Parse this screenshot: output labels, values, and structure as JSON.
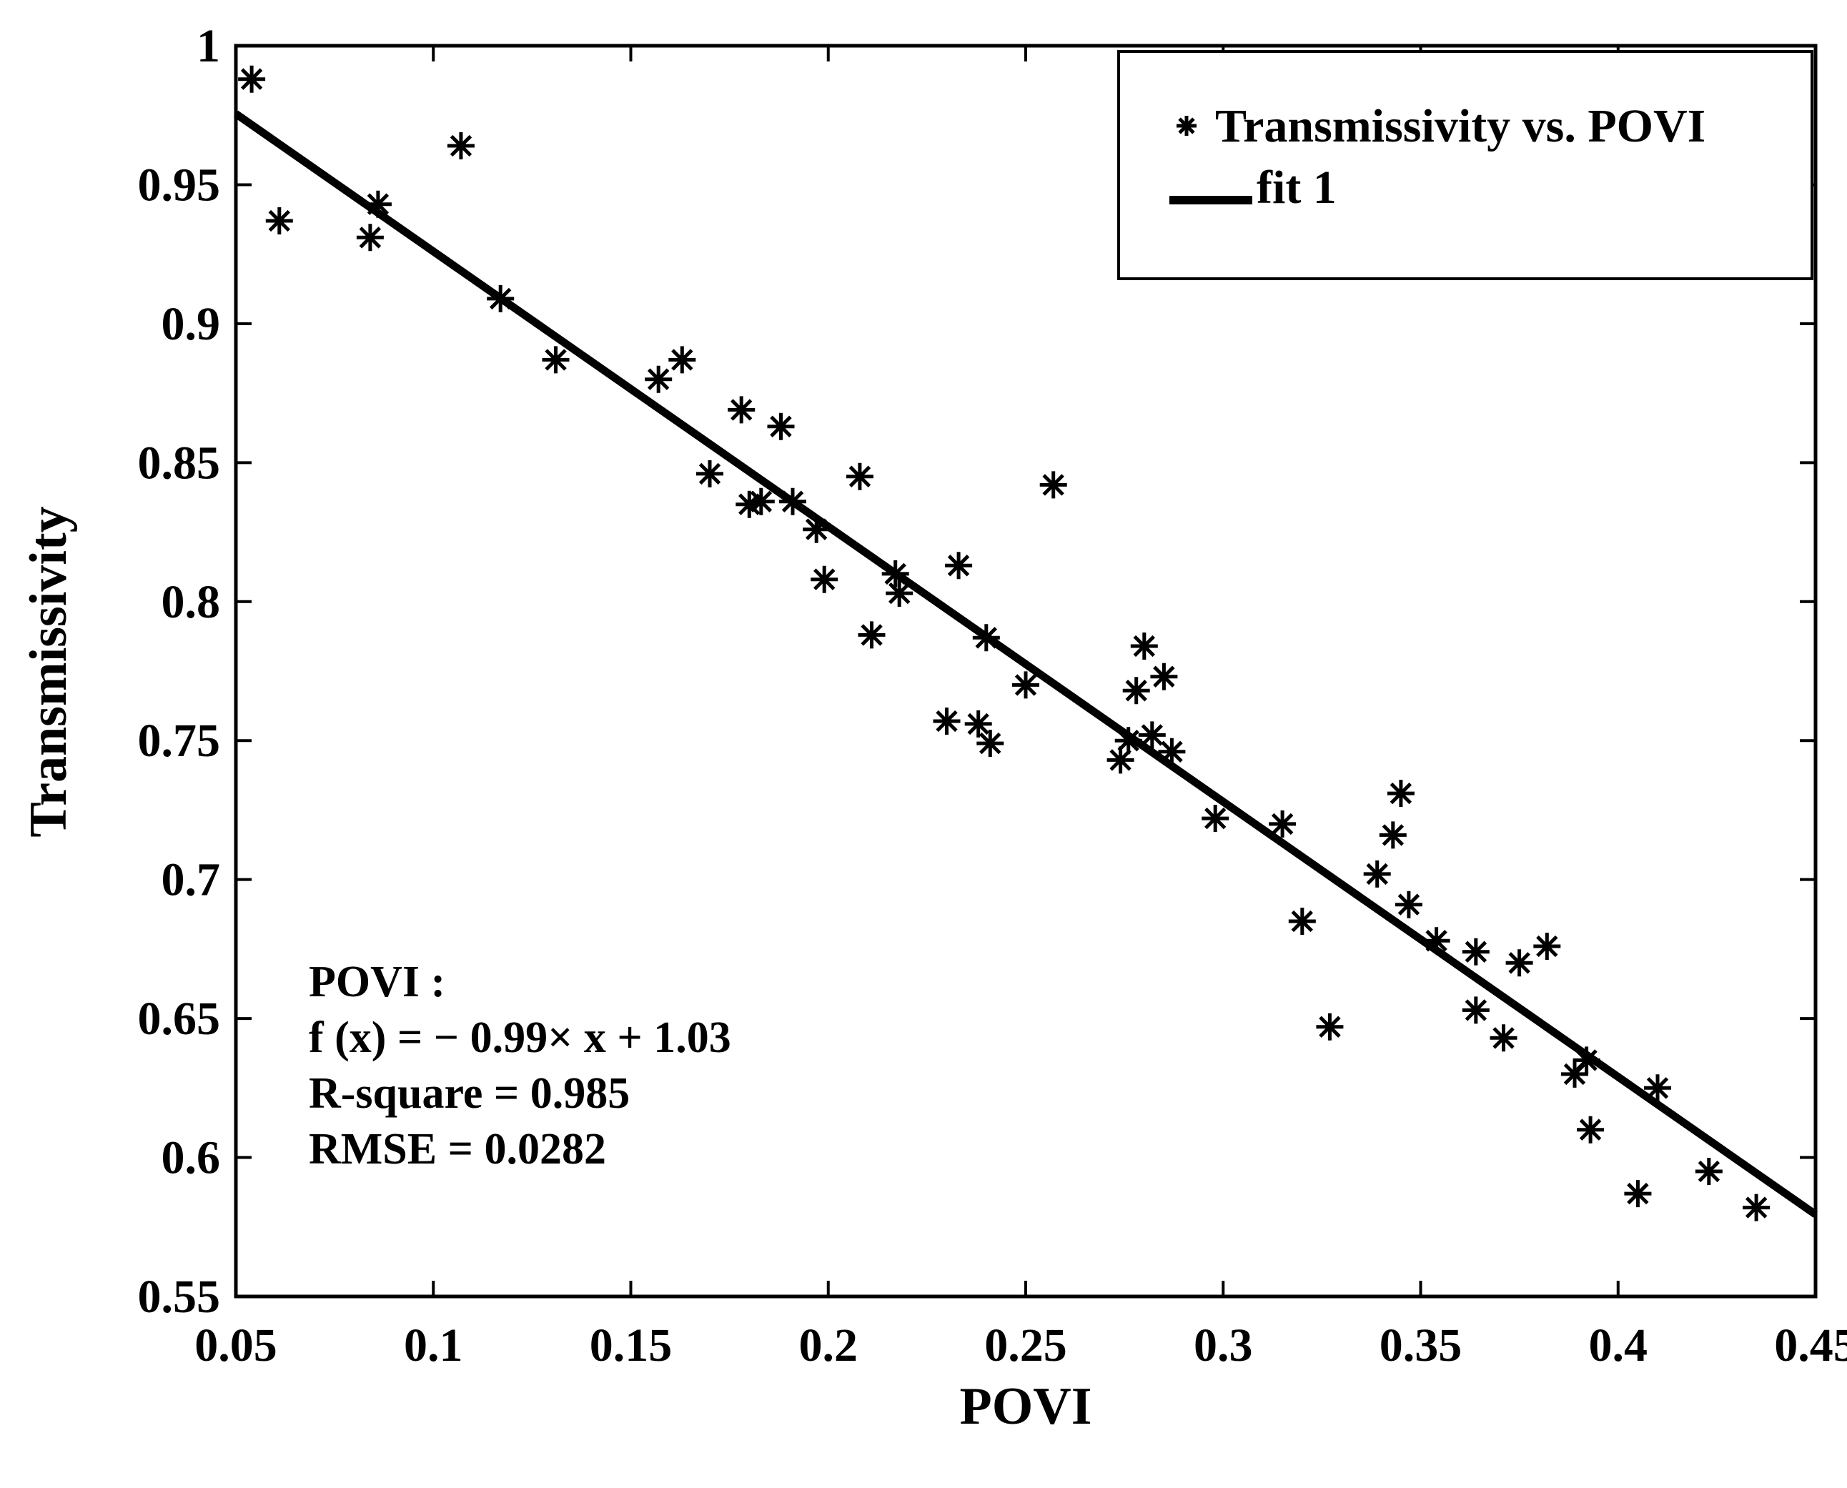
{
  "chart_data": {
    "type": "scatter",
    "xlabel": "POVI",
    "ylabel": "Transmissivity",
    "xlim": [
      0.05,
      0.45
    ],
    "ylim": [
      0.55,
      1.0
    ],
    "x_ticks": [
      "0.05",
      "0.1",
      "0.15",
      "0.2",
      "0.25",
      "0.3",
      "0.35",
      "0.4",
      "0.45"
    ],
    "y_ticks": [
      "0.55",
      "0.6",
      "0.65",
      "0.7",
      "0.75",
      "0.8",
      "0.85",
      "0.9",
      "0.95",
      "1"
    ],
    "x_tick_values": [
      0.05,
      0.1,
      0.15,
      0.2,
      0.25,
      0.3,
      0.35,
      0.4,
      0.45
    ],
    "y_tick_values": [
      0.55,
      0.6,
      0.65,
      0.7,
      0.75,
      0.8,
      0.85,
      0.9,
      0.95,
      1.0
    ],
    "grid": false,
    "legend_position": "top-right",
    "series": [
      {
        "name": "Transmissivity vs. POVI",
        "marker": "*",
        "color": "#000000",
        "points": [
          [
            0.054,
            0.988
          ],
          [
            0.061,
            0.937
          ],
          [
            0.084,
            0.931
          ],
          [
            0.086,
            0.943
          ],
          [
            0.107,
            0.964
          ],
          [
            0.117,
            0.909
          ],
          [
            0.131,
            0.887
          ],
          [
            0.157,
            0.88
          ],
          [
            0.163,
            0.887
          ],
          [
            0.17,
            0.846
          ],
          [
            0.178,
            0.869
          ],
          [
            0.18,
            0.835
          ],
          [
            0.183,
            0.836
          ],
          [
            0.188,
            0.863
          ],
          [
            0.191,
            0.836
          ],
          [
            0.197,
            0.826
          ],
          [
            0.199,
            0.808
          ],
          [
            0.208,
            0.845
          ],
          [
            0.211,
            0.788
          ],
          [
            0.217,
            0.81
          ],
          [
            0.218,
            0.803
          ],
          [
            0.23,
            0.757
          ],
          [
            0.233,
            0.813
          ],
          [
            0.238,
            0.756
          ],
          [
            0.24,
            0.787
          ],
          [
            0.241,
            0.749
          ],
          [
            0.25,
            0.77
          ],
          [
            0.257,
            0.842
          ],
          [
            0.274,
            0.743
          ],
          [
            0.276,
            0.75
          ],
          [
            0.278,
            0.768
          ],
          [
            0.28,
            0.784
          ],
          [
            0.282,
            0.752
          ],
          [
            0.285,
            0.773
          ],
          [
            0.287,
            0.746
          ],
          [
            0.298,
            0.722
          ],
          [
            0.315,
            0.72
          ],
          [
            0.32,
            0.685
          ],
          [
            0.327,
            0.647
          ],
          [
            0.339,
            0.702
          ],
          [
            0.343,
            0.716
          ],
          [
            0.345,
            0.731
          ],
          [
            0.347,
            0.691
          ],
          [
            0.354,
            0.678
          ],
          [
            0.364,
            0.674
          ],
          [
            0.364,
            0.653
          ],
          [
            0.371,
            0.643
          ],
          [
            0.375,
            0.67
          ],
          [
            0.382,
            0.676
          ],
          [
            0.389,
            0.63
          ],
          [
            0.392,
            0.635
          ],
          [
            0.393,
            0.61
          ],
          [
            0.405,
            0.587
          ],
          [
            0.41,
            0.625
          ],
          [
            0.423,
            0.595
          ],
          [
            0.435,
            0.582
          ]
        ]
      },
      {
        "name": "fit 1",
        "type": "line",
        "color": "#000000",
        "slope": -0.99,
        "intercept": 1.025,
        "x_range": [
          0.05,
          0.45
        ]
      }
    ],
    "annotation": [
      "POVI :",
      "f (x) = − 0.99× x + 1.03",
      "R-square = 0.985",
      "RMSE = 0.0282"
    ]
  }
}
